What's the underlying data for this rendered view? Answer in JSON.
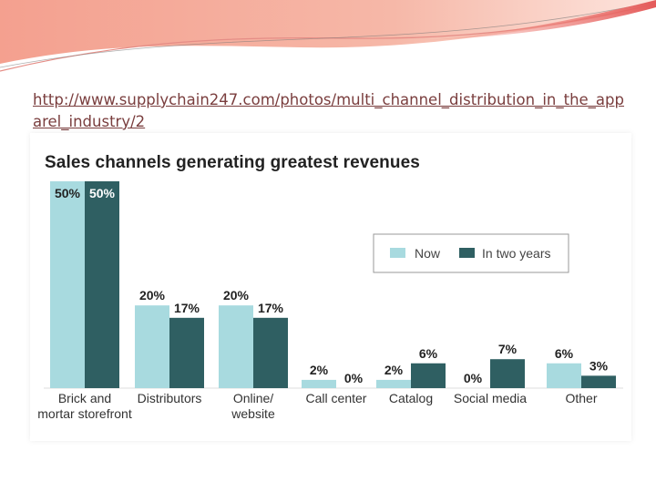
{
  "source_link": "http://www.supplychain247.com/photos/multi_channel_distribution_in_the_apparel_industry/2",
  "chart_data": {
    "type": "bar",
    "title": "Sales channels generating greatest revenues",
    "categories": [
      "Brick and mortar storefront",
      "Distributors",
      "Online/ website",
      "Call center",
      "Catalog",
      "Social media",
      "Other"
    ],
    "category_lines": [
      [
        "Brick and",
        "mortar storefront"
      ],
      [
        "Distributors"
      ],
      [
        "Online/",
        "website"
      ],
      [
        "Call center"
      ],
      [
        "Catalog"
      ],
      [
        "Social media"
      ],
      [
        "Other"
      ]
    ],
    "series": [
      {
        "name": "Now",
        "color": "#a8dadf",
        "values": [
          50,
          20,
          20,
          2,
          2,
          0,
          6
        ],
        "labels": [
          "50%",
          "20%",
          "20%",
          "2%",
          "2%",
          "0%",
          "6%"
        ]
      },
      {
        "name": "In two years",
        "color": "#2f5f62",
        "values": [
          50,
          17,
          17,
          0,
          6,
          7,
          3
        ],
        "labels": [
          "50%",
          "17%",
          "17%",
          "0%",
          "6%",
          "7%",
          "3%"
        ]
      }
    ],
    "ylim": [
      0,
      50
    ],
    "legend": "right, inside box",
    "grid": false,
    "xlabel": "",
    "ylabel": ""
  }
}
